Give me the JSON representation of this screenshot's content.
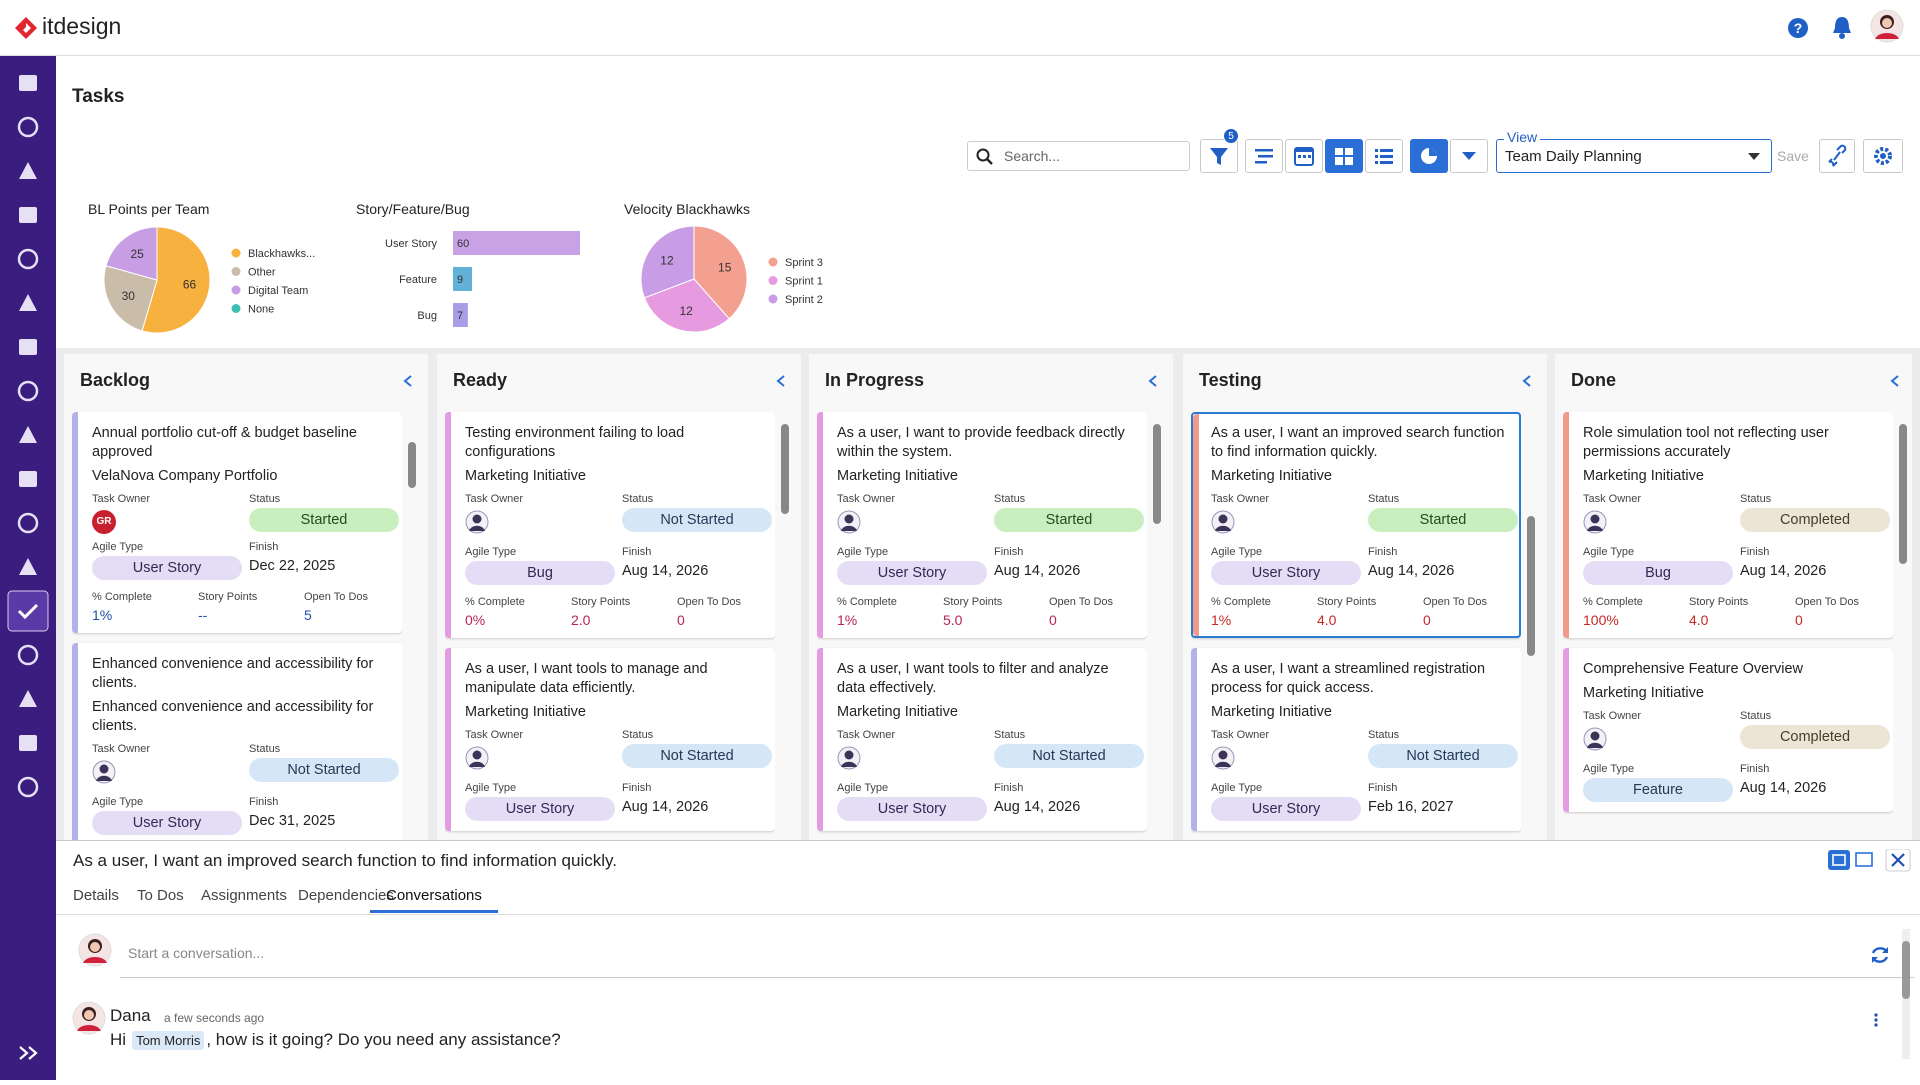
{
  "header": {
    "logo": "itdesign"
  },
  "page": {
    "title": "Tasks"
  },
  "toolbar": {
    "search_placeholder": "Search...",
    "filter_count": "5",
    "view_label": "View",
    "view_value": "Team Daily Planning",
    "save": "Save"
  },
  "chart_data": [
    {
      "type": "pie",
      "title": "BL Points per Team",
      "categories": [
        "Blackhawks...",
        "Other",
        "Digital Team",
        "None"
      ],
      "values": [
        66,
        30,
        25,
        0
      ],
      "colors": [
        "#f6b13f",
        "#c9bca9",
        "#c79de3",
        "#3dbfb3"
      ]
    },
    {
      "type": "bar",
      "title": "Story/Feature/Bug",
      "categories": [
        "User Story",
        "Feature",
        "Bug"
      ],
      "values": [
        60,
        9,
        7
      ],
      "colors": [
        "#c9a2e6",
        "#62b1d6",
        "#a99de6"
      ]
    },
    {
      "type": "pie",
      "title": "Velocity Blackhawks",
      "categories": [
        "Sprint 3",
        "Sprint 1",
        "Sprint 2"
      ],
      "values": [
        15,
        12,
        12
      ],
      "colors": [
        "#f4a090",
        "#e69be0",
        "#c89de6"
      ]
    }
  ],
  "card_labels": {
    "task_owner": "Task Owner",
    "status": "Status",
    "agile_type": "Agile Type",
    "finish": "Finish",
    "complete": "% Complete",
    "story_points": "Story Points",
    "open_todos": "Open To Dos"
  },
  "board": {
    "columns": [
      {
        "title": "Backlog",
        "cards": [
          {
            "title": "Annual portfolio cut-off & budget baseline approved",
            "subtitle": "VelaNova Company Portfolio",
            "owner_initials": "GR",
            "status": "Started",
            "agile_type": "User Story",
            "finish": "Dec 22, 2025",
            "complete": "1%",
            "story_points": "--",
            "open_todos": "5",
            "accent": "#b3b2e8",
            "metrics_color": "#1f4fa8"
          },
          {
            "title": "Enhanced convenience and accessibility for clients.",
            "subtitle": "Enhanced convenience and accessibility for clients.",
            "status": "Not Started",
            "agile_type": "User Story",
            "finish": "Dec 31, 2025",
            "accent": "#b3b2e8"
          }
        ]
      },
      {
        "title": "Ready",
        "cards": [
          {
            "title": "Testing environment failing to load configurations",
            "subtitle": "Marketing Initiative",
            "status": "Not Started",
            "agile_type": "Bug",
            "finish": "Aug 14, 2026",
            "complete": "0%",
            "story_points": "2.0",
            "open_todos": "0",
            "accent": "#e49be2",
            "metrics_color": "#b8235a"
          },
          {
            "title": "As a user, I want tools to manage and manipulate data efficiently.",
            "subtitle": "Marketing Initiative",
            "status": "Not Started",
            "agile_type": "User Story",
            "finish": "Aug 14, 2026",
            "accent": "#e49be2"
          }
        ]
      },
      {
        "title": "In Progress",
        "cards": [
          {
            "title": "As a user, I want to provide feedback directly within the system.",
            "subtitle": "Marketing Initiative",
            "status": "Started",
            "agile_type": "User Story",
            "finish": "Aug 14, 2026",
            "complete": "1%",
            "story_points": "5.0",
            "open_todos": "0",
            "accent": "#e49be2",
            "metrics_color": "#b8235a"
          },
          {
            "title": "As a user, I want tools to filter and analyze data effectively.",
            "subtitle": "Marketing Initiative",
            "status": "Not Started",
            "agile_type": "User Story",
            "finish": "Aug 14, 2026",
            "accent": "#e49be2"
          }
        ]
      },
      {
        "title": "Testing",
        "cards": [
          {
            "title": "As a user, I want an improved search function to find information quickly.",
            "subtitle": "Marketing Initiative",
            "status": "Started",
            "agile_type": "User Story",
            "finish": "Aug 14, 2026",
            "complete": "1%",
            "story_points": "4.0",
            "open_todos": "0",
            "accent": "#f09a8c",
            "metrics_color": "#c62828",
            "selected": true
          },
          {
            "title": "As a user, I want a streamlined registration process for quick access.",
            "subtitle": "Marketing Initiative",
            "status": "Not Started",
            "agile_type": "User Story",
            "finish": "Feb 16, 2027",
            "accent": "#b3b2e8"
          }
        ]
      },
      {
        "title": "Done",
        "cards": [
          {
            "title": "Role simulation tool not reflecting user permissions accurately",
            "subtitle": "Marketing Initiative",
            "status": "Completed",
            "agile_type": "Bug",
            "finish": "Aug 14, 2026",
            "complete": "100%",
            "story_points": "4.0",
            "open_todos": "0",
            "accent": "#f09a8c",
            "metrics_color": "#c62828"
          },
          {
            "title": "Comprehensive Feature Overview",
            "subtitle": "Marketing Initiative",
            "status": "Completed",
            "agile_type": "Feature",
            "finish": "Aug 14, 2026",
            "accent": "#e49be2"
          }
        ]
      }
    ]
  },
  "detail": {
    "title": "As a user, I want an improved search function to find information quickly.",
    "tabs": [
      "Details",
      "To Dos",
      "Assignments",
      "Dependencies",
      "Conversations"
    ],
    "active_tab": 4,
    "input_placeholder": "Start a conversation...",
    "message": {
      "author": "Dana",
      "time": "a few seconds ago",
      "text_before": "Hi",
      "mention": "Tom Morris",
      "text_after": ", how is it going? Do you need any assistance?"
    }
  }
}
